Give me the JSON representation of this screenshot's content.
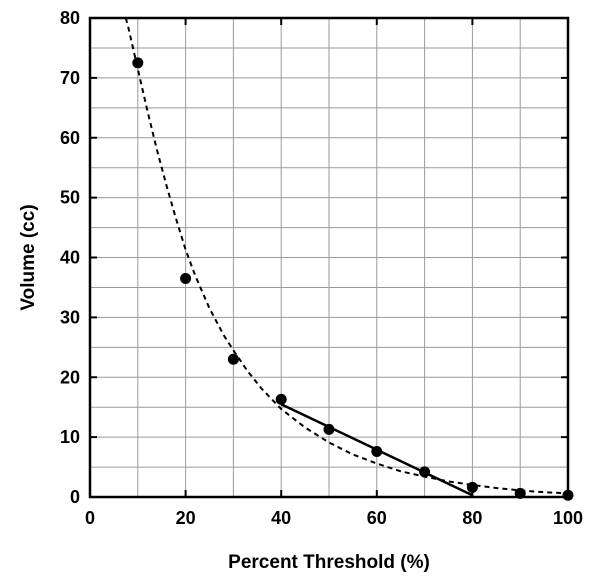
{
  "chart_data": {
    "type": "scatter",
    "title": "",
    "xlabel": "Percent Threshold (%)",
    "ylabel": "Volume (cc)",
    "xlim": [
      0,
      100
    ],
    "ylim": [
      0,
      80
    ],
    "x_ticks": [
      0,
      20,
      40,
      60,
      80,
      100
    ],
    "y_ticks": [
      0,
      10,
      20,
      30,
      40,
      50,
      60,
      70,
      80
    ],
    "x_tick_labels": [
      "0",
      "20",
      "40",
      "60",
      "80",
      "100"
    ],
    "y_tick_labels": [
      "0",
      "10",
      "20",
      "30",
      "40",
      "50",
      "60",
      "70",
      "80"
    ],
    "grid": true,
    "grid_step": {
      "x": 10,
      "y": 5
    },
    "series": [
      {
        "kind": "points",
        "marker": "filled-circle",
        "color": "#000000",
        "x": [
          10,
          20,
          30,
          40,
          50,
          60,
          70,
          80,
          90,
          100
        ],
        "y": [
          72.5,
          36.5,
          23,
          16.3,
          11.3,
          7.6,
          4.2,
          1.6,
          0.6,
          0.3
        ]
      },
      {
        "kind": "fit-curve",
        "line_style": "dashed",
        "color": "#000000",
        "x": [
          7.5,
          8,
          9,
          10,
          12,
          14,
          16,
          18,
          20,
          22,
          25,
          28,
          30,
          33,
          36,
          40,
          45,
          50,
          55,
          60,
          65,
          70,
          75,
          80,
          85,
          90,
          95,
          100
        ],
        "y": [
          80,
          78.5,
          75,
          71.5,
          64.5,
          58,
          52,
          46.5,
          41.3,
          37,
          31.5,
          27,
          24.5,
          21,
          18,
          14.7,
          11.6,
          9.1,
          7.1,
          5.6,
          4.3,
          3.4,
          2.6,
          2.0,
          1.5,
          1.1,
          0.8,
          0.6
        ]
      },
      {
        "kind": "fit-line",
        "line_style": "solid",
        "color": "#000000",
        "x": [
          40,
          80
        ],
        "y": [
          15.5,
          0.3
        ]
      }
    ]
  }
}
